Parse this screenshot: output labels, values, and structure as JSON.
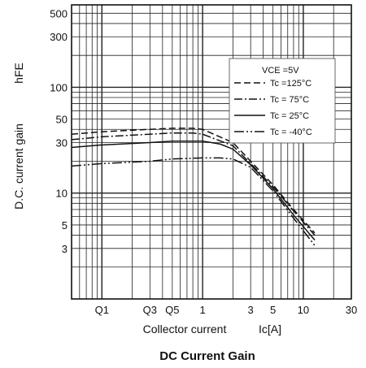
{
  "chart_data": {
    "type": "line",
    "title": "DC Current Gain",
    "xlabel": "Collector current",
    "xlabel_symbol": "Ic[A]",
    "ylabel": "D.C. current gain",
    "ylabel_symbol": "hFE",
    "x_scale": "log",
    "y_scale": "log",
    "xlim": [
      0.05,
      30
    ],
    "ylim": [
      1,
      600
    ],
    "grid": true,
    "legend_position": "right",
    "legend_header": "VCE =5V",
    "x_ticks": [
      {
        "v": 0.1,
        "label": "Q1"
      },
      {
        "v": 0.3,
        "label": "Q3"
      },
      {
        "v": 0.5,
        "label": "Q5"
      },
      {
        "v": 1,
        "label": "1"
      },
      {
        "v": 3,
        "label": "3"
      },
      {
        "v": 5,
        "label": "5"
      },
      {
        "v": 10,
        "label": "10"
      },
      {
        "v": 30,
        "label": "30"
      }
    ],
    "y_ticks": [
      {
        "v": 3,
        "label": "3"
      },
      {
        "v": 5,
        "label": "5"
      },
      {
        "v": 10,
        "label": "10"
      },
      {
        "v": 30,
        "label": "30"
      },
      {
        "v": 50,
        "label": "50"
      },
      {
        "v": 100,
        "label": "100"
      },
      {
        "v": 300,
        "label": "300"
      },
      {
        "v": 500,
        "label": "500"
      }
    ],
    "series": [
      {
        "name": "Tc =125°C",
        "dash": "8,4",
        "points": [
          [
            0.05,
            36
          ],
          [
            0.1,
            38
          ],
          [
            0.3,
            40
          ],
          [
            0.5,
            41
          ],
          [
            0.8,
            41
          ],
          [
            1,
            40
          ],
          [
            2,
            30
          ],
          [
            3,
            20
          ],
          [
            5,
            12
          ],
          [
            8,
            7
          ],
          [
            13,
            4.2
          ]
        ]
      },
      {
        "name": "Tc = 75°C",
        "dash": "10,3,2,3",
        "points": [
          [
            0.05,
            32
          ],
          [
            0.1,
            34
          ],
          [
            0.3,
            36
          ],
          [
            0.5,
            37
          ],
          [
            0.8,
            37
          ],
          [
            1,
            36
          ],
          [
            2,
            28
          ],
          [
            3,
            19
          ],
          [
            5,
            11.5
          ],
          [
            8,
            6.8
          ],
          [
            13,
            4
          ]
        ]
      },
      {
        "name": "Tc = 25°C",
        "dash": "",
        "points": [
          [
            0.05,
            27
          ],
          [
            0.1,
            28.5
          ],
          [
            0.3,
            30
          ],
          [
            0.5,
            31
          ],
          [
            1,
            31
          ],
          [
            1.5,
            29
          ],
          [
            2,
            26
          ],
          [
            3,
            18.5
          ],
          [
            5,
            11
          ],
          [
            8,
            6.2
          ],
          [
            13,
            3.6
          ]
        ]
      },
      {
        "name": "Tc = -40°C",
        "dash": "12,3,2,3,2,3",
        "points": [
          [
            0.05,
            18
          ],
          [
            0.1,
            19
          ],
          [
            0.3,
            20
          ],
          [
            0.5,
            21
          ],
          [
            1,
            21.5
          ],
          [
            1.5,
            21.5
          ],
          [
            2,
            21
          ],
          [
            3,
            17.5
          ],
          [
            5,
            10.5
          ],
          [
            8,
            5.8
          ],
          [
            13,
            3.2
          ]
        ]
      }
    ]
  }
}
